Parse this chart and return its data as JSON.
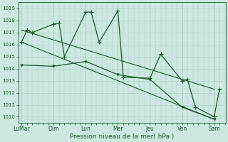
{
  "xlabel": "Pression niveau de la mer( hPa )",
  "xtick_labels": [
    "LuMar",
    "Dim",
    "Lun",
    "Mer",
    "Jeu",
    "Ven",
    "Sam"
  ],
  "xtick_positions": [
    0,
    48,
    96,
    144,
    192,
    240,
    288
  ],
  "ylim": [
    1009.5,
    1019.5
  ],
  "yticks": [
    1010,
    1011,
    1012,
    1013,
    1014,
    1015,
    1016,
    1017,
    1018,
    1019
  ],
  "background_color": "#cce8e0",
  "grid_color": "#aaccC4",
  "line_color": "#1a5c28",
  "xlim": [
    -5,
    305
  ],
  "series1_x": [
    0,
    8,
    16,
    48,
    56,
    64,
    96,
    104,
    116,
    144,
    152,
    192,
    208,
    240,
    248,
    260,
    288,
    296
  ],
  "series1_y": [
    1016.2,
    1017.2,
    1017.0,
    1017.7,
    1017.8,
    1015.0,
    1018.7,
    1018.7,
    1016.2,
    1018.8,
    1013.3,
    1013.2,
    1015.2,
    1013.0,
    1013.1,
    1010.8,
    1010.0,
    1012.3
  ],
  "series2_x": [
    0,
    48,
    96,
    144,
    192,
    240,
    288
  ],
  "series2_y": [
    1014.3,
    1014.2,
    1014.6,
    1013.5,
    1013.1,
    1010.8,
    1009.8
  ],
  "series3_x": [
    0,
    288
  ],
  "series3_y": [
    1017.2,
    1012.3
  ],
  "series4_x": [
    0,
    288
  ],
  "series4_y": [
    1016.2,
    1009.8
  ]
}
